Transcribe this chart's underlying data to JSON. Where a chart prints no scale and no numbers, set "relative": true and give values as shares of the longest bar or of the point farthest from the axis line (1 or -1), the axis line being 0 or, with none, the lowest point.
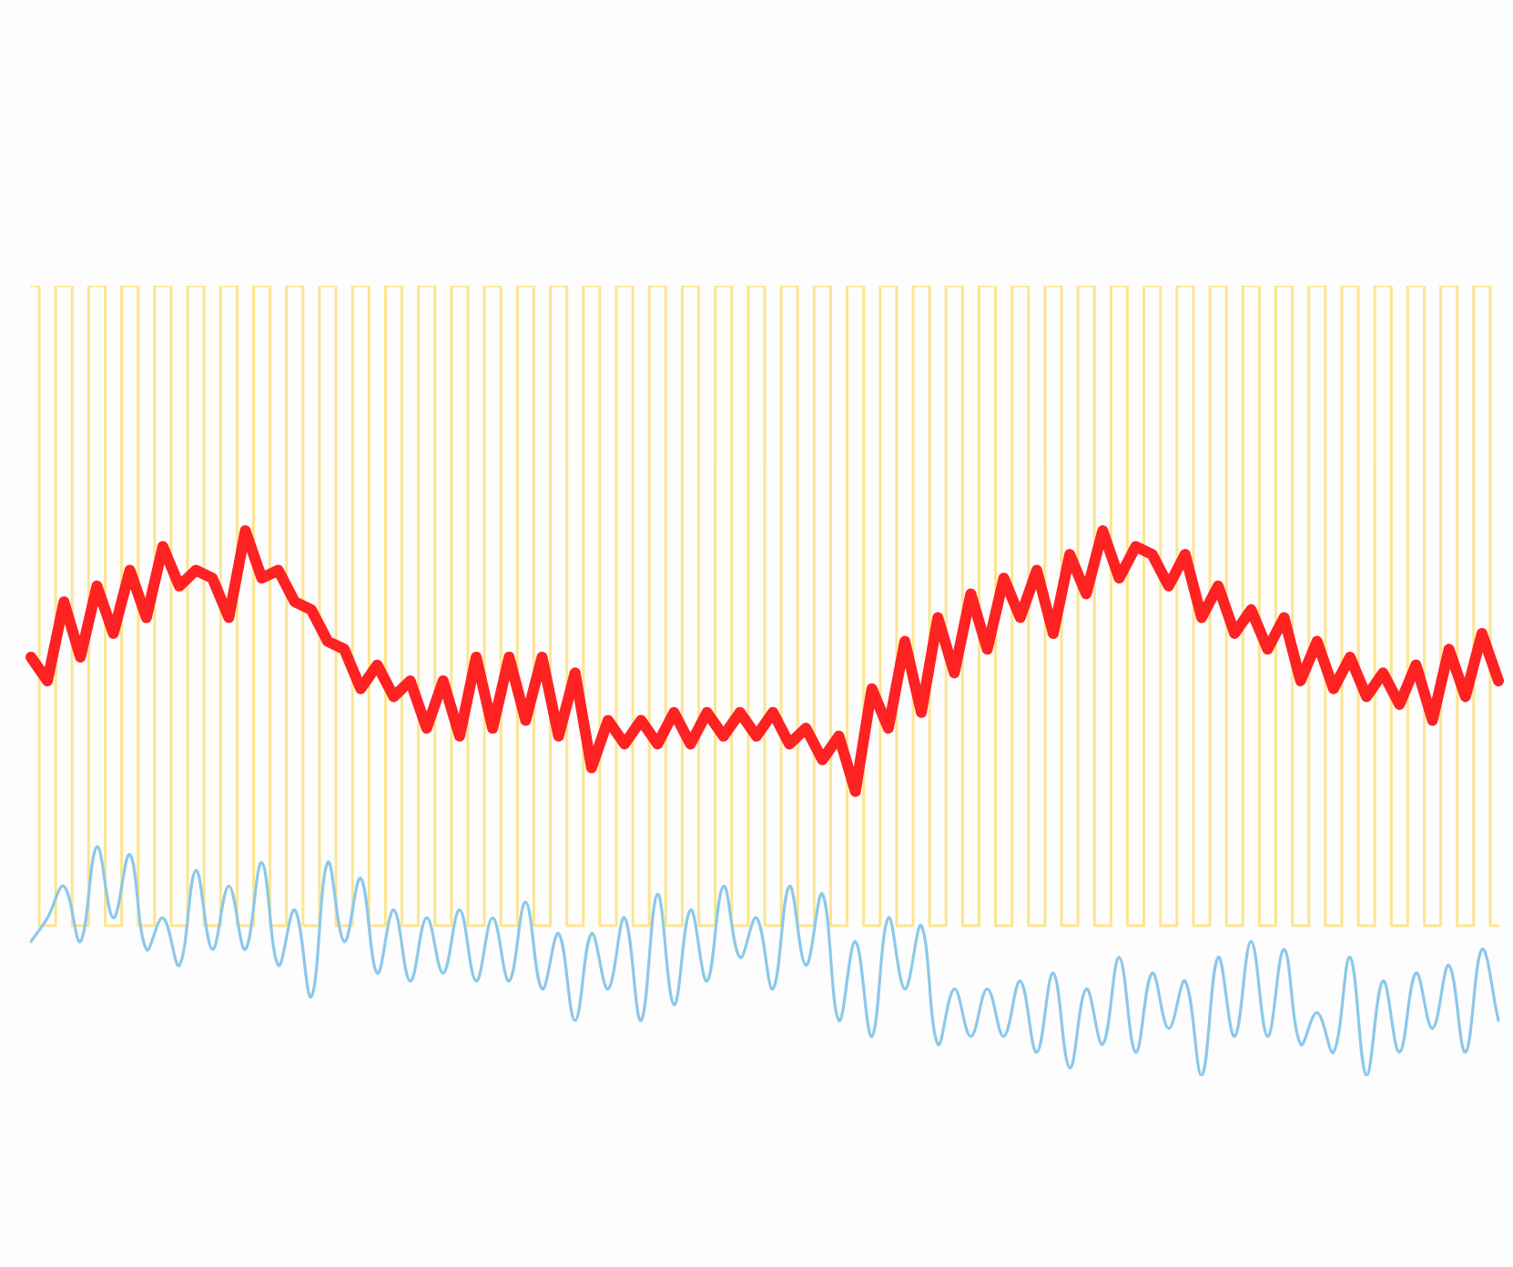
{
  "chart_data": {
    "type": "line",
    "relative": true,
    "marker": "none",
    "categories": [
      null,
      null,
      null,
      null,
      null,
      null,
      null,
      null,
      null,
      null,
      null,
      null,
      null,
      null,
      null,
      null,
      null,
      null,
      null,
      null,
      null,
      null,
      null,
      null,
      null,
      null,
      null,
      null,
      null,
      null,
      null,
      null,
      null,
      null,
      null,
      null,
      null,
      null,
      null,
      null,
      null,
      null,
      null,
      null,
      null,
      null,
      null,
      null,
      null,
      null,
      null,
      null,
      null,
      null,
      null,
      null,
      null,
      null,
      null,
      null,
      null,
      null,
      null,
      null,
      null,
      null,
      null,
      null,
      null,
      null,
      null,
      null,
      null,
      null,
      null,
      null,
      null,
      null,
      null,
      null,
      null,
      null,
      null,
      null,
      null,
      null,
      null,
      null,
      null,
      null
    ],
    "series": [
      {
        "type": "step",
        "color": "#fde58e",
        "values": [
          1,
          0.19,
          1,
          0.19,
          1,
          0.19,
          1,
          0.19,
          1,
          0.19,
          1,
          0.19,
          1,
          0.19,
          1,
          0.19,
          1,
          0.19,
          1,
          0.19,
          1,
          0.19,
          1,
          0.19,
          1,
          0.19,
          1,
          0.19,
          1,
          0.19,
          1,
          0.19,
          1,
          0.19,
          1,
          0.19,
          1,
          0.19,
          1,
          0.19,
          1,
          0.19,
          1,
          0.19,
          1,
          0.19,
          1,
          0.19,
          1,
          0.19,
          1,
          0.19,
          1,
          0.19,
          1,
          0.19,
          1,
          0.19,
          1,
          0.19,
          1,
          0.19,
          1,
          0.19,
          1,
          0.19,
          1,
          0.19,
          1,
          0.19,
          1,
          0.19,
          1,
          0.19,
          1,
          0.19,
          1,
          0.19,
          1,
          0.19,
          1,
          0.19,
          1,
          0.19,
          1,
          0.19,
          1,
          0.19,
          1,
          0.19
        ]
      },
      {
        "type": "line",
        "color": "#ff2222",
        "values": [
          0.53,
          0.5,
          0.6,
          0.53,
          0.62,
          0.56,
          0.64,
          0.58,
          0.67,
          0.62,
          0.64,
          0.63,
          0.58,
          0.69,
          0.63,
          0.64,
          0.6,
          0.59,
          0.55,
          0.54,
          0.49,
          0.52,
          0.48,
          0.5,
          0.44,
          0.5,
          0.43,
          0.53,
          0.44,
          0.53,
          0.45,
          0.53,
          0.43,
          0.51,
          0.39,
          0.45,
          0.42,
          0.45,
          0.42,
          0.46,
          0.42,
          0.46,
          0.43,
          0.46,
          0.43,
          0.46,
          0.42,
          0.44,
          0.4,
          0.43,
          0.36,
          0.49,
          0.44,
          0.55,
          0.46,
          0.58,
          0.51,
          0.61,
          0.54,
          0.63,
          0.58,
          0.64,
          0.56,
          0.66,
          0.61,
          0.69,
          0.63,
          0.67,
          0.66,
          0.62,
          0.66,
          0.58,
          0.62,
          0.56,
          0.59,
          0.54,
          0.58,
          0.5,
          0.55,
          0.49,
          0.53,
          0.48,
          0.51,
          0.47,
          0.52,
          0.45,
          0.54,
          0.48,
          0.56,
          0.5
        ]
      },
      {
        "type": "line",
        "color": "#8cc8ea",
        "values": [
          0.17,
          0.2,
          0.24,
          0.17,
          0.29,
          0.2,
          0.28,
          0.16,
          0.2,
          0.14,
          0.26,
          0.16,
          0.24,
          0.16,
          0.27,
          0.14,
          0.21,
          0.1,
          0.27,
          0.17,
          0.25,
          0.13,
          0.21,
          0.12,
          0.2,
          0.13,
          0.21,
          0.12,
          0.2,
          0.12,
          0.22,
          0.11,
          0.18,
          0.07,
          0.18,
          0.11,
          0.2,
          0.07,
          0.23,
          0.09,
          0.21,
          0.12,
          0.24,
          0.15,
          0.2,
          0.11,
          0.24,
          0.14,
          0.23,
          0.07,
          0.17,
          0.05,
          0.2,
          0.11,
          0.19,
          0.04,
          0.11,
          0.05,
          0.11,
          0.05,
          0.12,
          0.03,
          0.13,
          0.01,
          0.11,
          0.04,
          0.15,
          0.03,
          0.13,
          0.06,
          0.12,
          0.0,
          0.15,
          0.05,
          0.17,
          0.05,
          0.16,
          0.04,
          0.08,
          0.03,
          0.15,
          0.0,
          0.12,
          0.03,
          0.13,
          0.06,
          0.14,
          0.03,
          0.16,
          0.07
        ]
      }
    ]
  }
}
